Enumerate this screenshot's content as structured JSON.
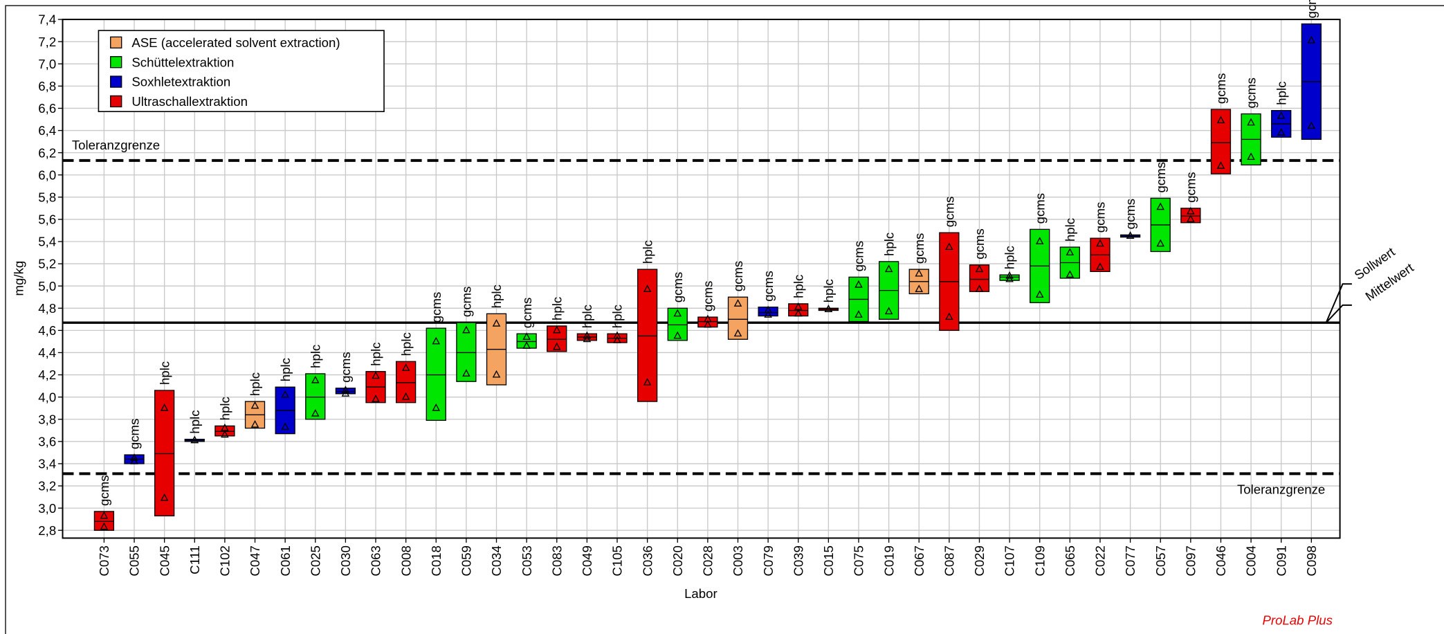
{
  "chart_data": {
    "type": "box",
    "ylabel": "mg/kg",
    "xlabel": "Labor",
    "footer": "ProLab Plus",
    "ylim": [
      2.73,
      7.4
    ],
    "yticks": [
      {
        "value": 2.8,
        "label": "2,8"
      },
      {
        "value": 3.0,
        "label": "3,0"
      },
      {
        "value": 3.2,
        "label": "3,2"
      },
      {
        "value": 3.4,
        "label": "3,4"
      },
      {
        "value": 3.6,
        "label": "3,6"
      },
      {
        "value": 3.8,
        "label": "3,8"
      },
      {
        "value": 4.0,
        "label": "4,0"
      },
      {
        "value": 4.2,
        "label": "4,2"
      },
      {
        "value": 4.4,
        "label": "4,4"
      },
      {
        "value": 4.6,
        "label": "4,6"
      },
      {
        "value": 4.8,
        "label": "4,8"
      },
      {
        "value": 5.0,
        "label": "5,0"
      },
      {
        "value": 5.2,
        "label": "5,2"
      },
      {
        "value": 5.4,
        "label": "5,4"
      },
      {
        "value": 5.6,
        "label": "5,6"
      },
      {
        "value": 5.8,
        "label": "5,8"
      },
      {
        "value": 6.0,
        "label": "6,0"
      },
      {
        "value": 6.2,
        "label": "6,2"
      },
      {
        "value": 6.4,
        "label": "6,4"
      },
      {
        "value": 6.6,
        "label": "6,6"
      },
      {
        "value": 6.8,
        "label": "6,8"
      },
      {
        "value": 7.0,
        "label": "7,0"
      },
      {
        "value": 7.2,
        "label": "7,2"
      },
      {
        "value": 7.4,
        "label": "7,4"
      }
    ],
    "grid": true,
    "legend_position": "upper left",
    "legend": [
      {
        "name": "ASE (accelerated solvent extraction)",
        "color": "#f4a460"
      },
      {
        "name": "Schüttelextraktion",
        "color": "#00e600"
      },
      {
        "name": "Soxhletextraktion",
        "color": "#0000cc"
      },
      {
        "name": "Ultraschallextraktion",
        "color": "#e60000"
      }
    ],
    "reference_lines": [
      {
        "label": "Toleranzgrenze",
        "value": 6.13,
        "style": "dashed"
      },
      {
        "label": "Toleranzgrenze",
        "value": 3.31,
        "style": "dashed"
      },
      {
        "label": "Sollwert",
        "value": 4.67,
        "style": "solid"
      },
      {
        "label": "Mittelwert",
        "value": 4.67,
        "style": "solid"
      }
    ],
    "boxes": [
      {
        "category": "C073",
        "method": 3,
        "label": "gcms",
        "low": 2.8,
        "high": 2.97,
        "median": 2.88,
        "values": [
          2.93,
          2.83
        ]
      },
      {
        "category": "C055",
        "method": 2,
        "label": "gcms",
        "low": 3.4,
        "high": 3.48,
        "median": 3.44,
        "values": [
          3.45,
          3.42
        ]
      },
      {
        "category": "C045",
        "method": 3,
        "label": "hplc",
        "low": 2.93,
        "high": 4.06,
        "median": 3.49,
        "values": [
          3.9,
          3.09
        ]
      },
      {
        "category": "C111",
        "method": 2,
        "label": "hplc",
        "low": 3.6,
        "high": 3.62,
        "median": 3.61,
        "values": [
          3.61,
          3.61
        ]
      },
      {
        "category": "C102",
        "method": 3,
        "label": "hplc",
        "low": 3.65,
        "high": 3.74,
        "median": 3.69,
        "values": [
          3.72,
          3.66
        ]
      },
      {
        "category": "C047",
        "method": 0,
        "label": "hplc",
        "low": 3.72,
        "high": 3.96,
        "median": 3.84,
        "values": [
          3.92,
          3.75
        ]
      },
      {
        "category": "C061",
        "method": 2,
        "label": "hplc",
        "low": 3.67,
        "high": 4.09,
        "median": 3.88,
        "values": [
          4.02,
          3.73
        ]
      },
      {
        "category": "C025",
        "method": 1,
        "label": "hplc",
        "low": 3.8,
        "high": 4.21,
        "median": 4.0,
        "values": [
          4.15,
          3.85
        ]
      },
      {
        "category": "C030",
        "method": 2,
        "label": "gcms",
        "low": 4.03,
        "high": 4.08,
        "median": 4.05,
        "values": [
          4.06,
          4.03
        ]
      },
      {
        "category": "C063",
        "method": 3,
        "label": "hplc",
        "low": 3.95,
        "high": 4.23,
        "median": 4.09,
        "values": [
          4.19,
          3.98
        ]
      },
      {
        "category": "C008",
        "method": 3,
        "label": "hplc",
        "low": 3.95,
        "high": 4.32,
        "median": 4.13,
        "values": [
          4.26,
          4.0
        ]
      },
      {
        "category": "C018",
        "method": 1,
        "label": "gcms",
        "low": 3.79,
        "high": 4.62,
        "median": 4.2,
        "values": [
          4.5,
          3.9
        ]
      },
      {
        "category": "C059",
        "method": 1,
        "label": "gcms",
        "low": 4.14,
        "high": 4.67,
        "median": 4.4,
        "values": [
          4.6,
          4.21
        ]
      },
      {
        "category": "C034",
        "method": 0,
        "label": "hplc",
        "low": 4.11,
        "high": 4.75,
        "median": 4.43,
        "values": [
          4.66,
          4.2
        ]
      },
      {
        "category": "C053",
        "method": 1,
        "label": "gcms",
        "low": 4.44,
        "high": 4.57,
        "median": 4.5,
        "values": [
          4.54,
          4.46
        ]
      },
      {
        "category": "C083",
        "method": 3,
        "label": "hplc",
        "low": 4.41,
        "high": 4.64,
        "median": 4.52,
        "values": [
          4.6,
          4.45
        ]
      },
      {
        "category": "C049",
        "method": 3,
        "label": "hplc",
        "low": 4.51,
        "high": 4.57,
        "median": 4.54,
        "values": [
          4.55,
          4.52
        ]
      },
      {
        "category": "C105",
        "method": 3,
        "label": "hplc",
        "low": 4.49,
        "high": 4.57,
        "median": 4.53,
        "values": [
          4.55,
          4.51
        ]
      },
      {
        "category": "C036",
        "method": 3,
        "label": "hplc",
        "low": 3.96,
        "high": 5.15,
        "median": 4.55,
        "values": [
          4.97,
          4.13
        ]
      },
      {
        "category": "C020",
        "method": 1,
        "label": "gcms",
        "low": 4.51,
        "high": 4.8,
        "median": 4.65,
        "values": [
          4.75,
          4.55
        ]
      },
      {
        "category": "C028",
        "method": 3,
        "label": "gcms",
        "low": 4.63,
        "high": 4.72,
        "median": 4.68,
        "values": [
          4.7,
          4.65
        ]
      },
      {
        "category": "C003",
        "method": 0,
        "label": "gcms",
        "low": 4.52,
        "high": 4.9,
        "median": 4.7,
        "values": [
          4.84,
          4.57
        ]
      },
      {
        "category": "C079",
        "method": 2,
        "label": "gcms",
        "low": 4.73,
        "high": 4.81,
        "median": 4.76,
        "values": [
          4.78,
          4.74
        ]
      },
      {
        "category": "C039",
        "method": 3,
        "label": "hplc",
        "low": 4.73,
        "high": 4.84,
        "median": 4.78,
        "values": [
          4.81,
          4.75
        ]
      },
      {
        "category": "C015",
        "method": 3,
        "label": "hplc",
        "low": 4.78,
        "high": 4.8,
        "median": 4.79,
        "values": [
          4.79,
          4.79
        ]
      },
      {
        "category": "C075",
        "method": 1,
        "label": "gcms",
        "low": 4.68,
        "high": 5.08,
        "median": 4.88,
        "values": [
          5.01,
          4.74
        ]
      },
      {
        "category": "C019",
        "method": 1,
        "label": "hplc",
        "low": 4.7,
        "high": 5.22,
        "median": 4.96,
        "values": [
          5.15,
          4.77
        ]
      },
      {
        "category": "C067",
        "method": 0,
        "label": "gcms",
        "low": 4.93,
        "high": 5.15,
        "median": 5.04,
        "values": [
          5.11,
          4.97
        ]
      },
      {
        "category": "C087",
        "method": 3,
        "label": "gcms",
        "low": 4.6,
        "high": 5.48,
        "median": 5.04,
        "values": [
          5.35,
          4.72
        ]
      },
      {
        "category": "C029",
        "method": 3,
        "label": "gcms",
        "low": 4.95,
        "high": 5.19,
        "median": 5.06,
        "values": [
          5.15,
          4.97
        ]
      },
      {
        "category": "C107",
        "method": 1,
        "label": "hplc",
        "low": 5.05,
        "high": 5.1,
        "median": 5.08,
        "values": [
          5.09,
          5.06
        ]
      },
      {
        "category": "C109",
        "method": 1,
        "label": "gcms",
        "low": 4.85,
        "high": 5.51,
        "median": 5.18,
        "values": [
          5.4,
          4.92
        ]
      },
      {
        "category": "C065",
        "method": 1,
        "label": "hplc",
        "low": 5.07,
        "high": 5.35,
        "median": 5.21,
        "values": [
          5.3,
          5.1
        ]
      },
      {
        "category": "C022",
        "method": 3,
        "label": "gcms",
        "low": 5.13,
        "high": 5.43,
        "median": 5.28,
        "values": [
          5.38,
          5.17
        ]
      },
      {
        "category": "C077",
        "method": 2,
        "label": "gcms",
        "low": 5.44,
        "high": 5.46,
        "median": 5.45,
        "values": [
          5.45,
          5.45
        ]
      },
      {
        "category": "C057",
        "method": 1,
        "label": "gcms",
        "low": 5.31,
        "high": 5.79,
        "median": 5.55,
        "values": [
          5.71,
          5.38
        ]
      },
      {
        "category": "C097",
        "method": 3,
        "label": "gcms",
        "low": 5.57,
        "high": 5.7,
        "median": 5.63,
        "values": [
          5.67,
          5.6
        ]
      },
      {
        "category": "C046",
        "method": 3,
        "label": "gcms",
        "low": 6.01,
        "high": 6.59,
        "median": 6.29,
        "values": [
          6.49,
          6.08
        ]
      },
      {
        "category": "C004",
        "method": 1,
        "label": "gcms",
        "low": 6.09,
        "high": 6.55,
        "median": 6.32,
        "values": [
          6.47,
          6.16
        ]
      },
      {
        "category": "C091",
        "method": 2,
        "label": "hplc",
        "low": 6.34,
        "high": 6.58,
        "median": 6.46,
        "values": [
          6.53,
          6.38
        ]
      },
      {
        "category": "C098",
        "method": 2,
        "label": "gcms",
        "low": 6.32,
        "high": 7.36,
        "median": 6.84,
        "values": [
          7.21,
          6.44
        ]
      }
    ]
  }
}
